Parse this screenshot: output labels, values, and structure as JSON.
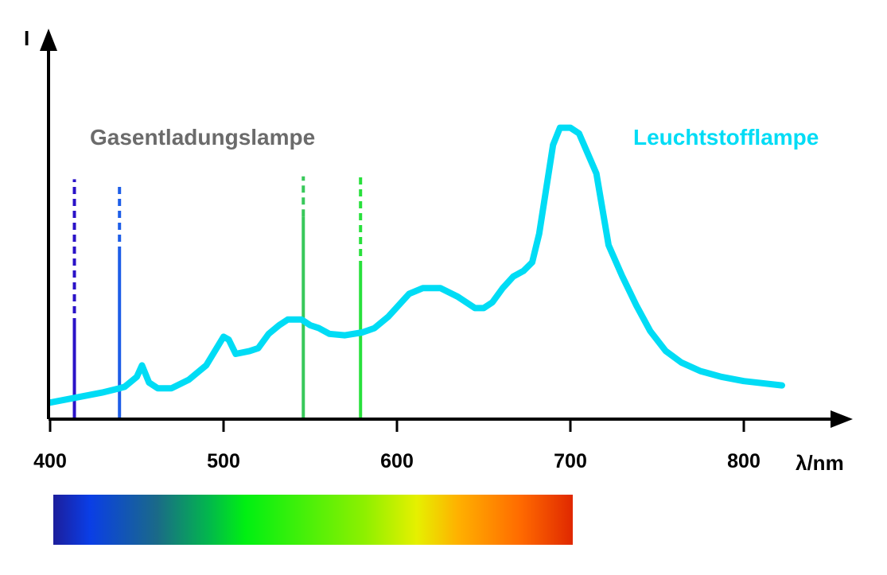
{
  "chart_data": {
    "type": "line",
    "xlabel": "λ/nm",
    "ylabel": "I",
    "xlim": [
      400,
      840
    ],
    "ylim": [
      0,
      100
    ],
    "x_ticks": [
      400,
      500,
      600,
      700,
      800
    ],
    "grid": false,
    "series": [
      {
        "name": "Leuchtstofflampe",
        "color": "#00dcf5",
        "points": [
          [
            400,
            3
          ],
          [
            430,
            6.5
          ],
          [
            440,
            8
          ],
          [
            443,
            8.5
          ],
          [
            450,
            12
          ],
          [
            453,
            16
          ],
          [
            457,
            10
          ],
          [
            462,
            8
          ],
          [
            470,
            8
          ],
          [
            480,
            11
          ],
          [
            490,
            16
          ],
          [
            496,
            22
          ],
          [
            500,
            26
          ],
          [
            503,
            25
          ],
          [
            507,
            20
          ],
          [
            515,
            21
          ],
          [
            520,
            22
          ],
          [
            526,
            27
          ],
          [
            532,
            30
          ],
          [
            537,
            32
          ],
          [
            545,
            32
          ],
          [
            550,
            30
          ],
          [
            555,
            29
          ],
          [
            561,
            27
          ],
          [
            570,
            26.5
          ],
          [
            580,
            27.5
          ],
          [
            587,
            29
          ],
          [
            595,
            33
          ],
          [
            601,
            37
          ],
          [
            607,
            41
          ],
          [
            615,
            43
          ],
          [
            625,
            43
          ],
          [
            635,
            40
          ],
          [
            645,
            36
          ],
          [
            650,
            36
          ],
          [
            655,
            38
          ],
          [
            661,
            43
          ],
          [
            667,
            47
          ],
          [
            673,
            49
          ],
          [
            678,
            52
          ],
          [
            682,
            62
          ],
          [
            690,
            93
          ],
          [
            694,
            99
          ],
          [
            700,
            99
          ],
          [
            705,
            97
          ],
          [
            710,
            90
          ],
          [
            715,
            83
          ],
          [
            722,
            58
          ],
          [
            730,
            47
          ],
          [
            738,
            37
          ],
          [
            746,
            28
          ],
          [
            755,
            21
          ],
          [
            764,
            17
          ],
          [
            775,
            14
          ],
          [
            787,
            12
          ],
          [
            800,
            10.5
          ],
          [
            822,
            9
          ]
        ]
      }
    ],
    "emission_lines": {
      "name": "Gasentladungslampe",
      "name_color": "#6b6b6b",
      "lines": [
        {
          "wavelength": 414,
          "value": 30,
          "dashed_top": 81,
          "color": "#2a12c8"
        },
        {
          "wavelength": 440,
          "value": 55,
          "dashed_top": 80,
          "color": "#1e5ee8"
        },
        {
          "wavelength": 546,
          "value": 68,
          "dashed_top": 82,
          "color": "#38c85a"
        },
        {
          "wavelength": 579,
          "value": 50,
          "dashed_top": 82,
          "color": "#28e03c"
        }
      ]
    },
    "spectrum_bar": {
      "from": 400,
      "to": 700,
      "stops": [
        {
          "offset": 0,
          "color": "#1c1e9c"
        },
        {
          "offset": 0.07,
          "color": "#0a3ee6"
        },
        {
          "offset": 0.2,
          "color": "#1a6a88"
        },
        {
          "offset": 0.3,
          "color": "#02b84c"
        },
        {
          "offset": 0.37,
          "color": "#00f012"
        },
        {
          "offset": 0.6,
          "color": "#8ef000"
        },
        {
          "offset": 0.7,
          "color": "#e6f000"
        },
        {
          "offset": 0.78,
          "color": "#ffb000"
        },
        {
          "offset": 0.9,
          "color": "#ff6a00"
        },
        {
          "offset": 1,
          "color": "#e02800"
        }
      ]
    },
    "axis_color": "#000000"
  }
}
